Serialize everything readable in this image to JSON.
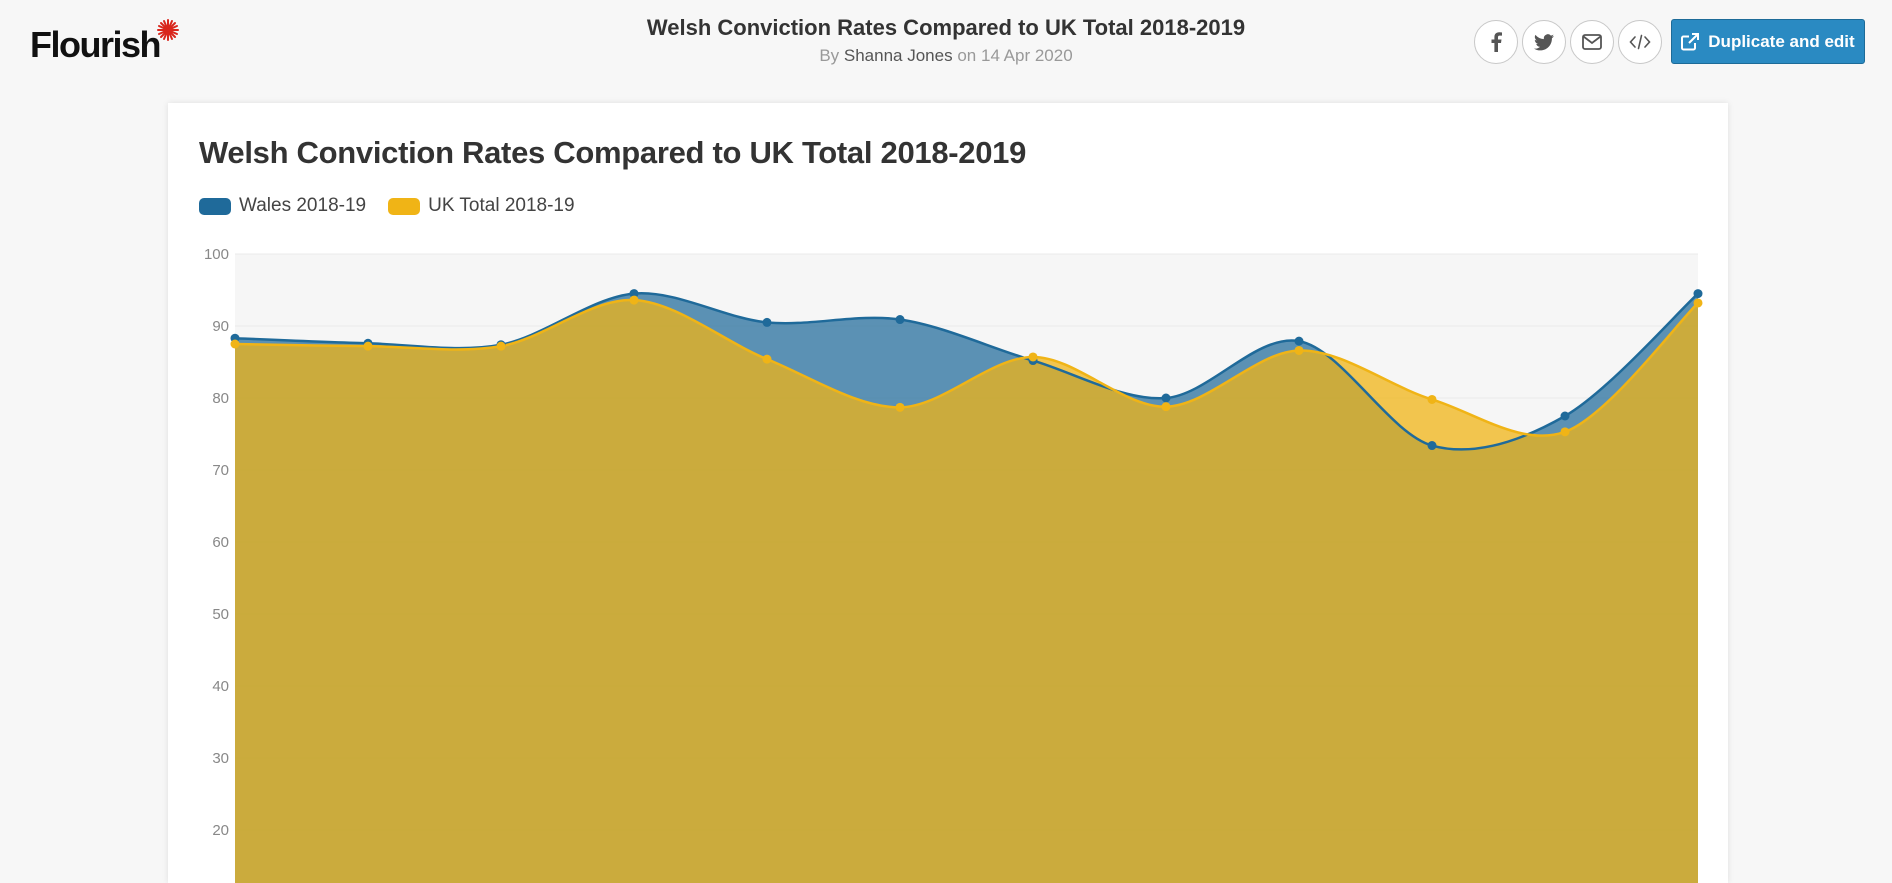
{
  "header": {
    "logo_text": "Flourish",
    "title": "Welsh Conviction Rates Compared to UK Total 2018-2019",
    "byline_prefix": "By",
    "author": "Shanna Jones",
    "byline_mid": "on",
    "date": "14 Apr 2020",
    "duplicate_label": "Duplicate and edit",
    "share_icons": [
      "facebook-icon",
      "twitter-icon",
      "email-icon",
      "embed-code-icon"
    ]
  },
  "colors": {
    "wales": "#1f6a9a",
    "uk": "#f0b416",
    "brand_accent": "#2a8ac2",
    "logo_star": "#d9261c"
  },
  "chart_data": {
    "type": "area",
    "title": "Welsh Conviction Rates Compared to UK Total 2018-2019",
    "xlabel": "",
    "ylabel": "",
    "ylim": [
      0,
      100
    ],
    "y_ticks_visible": [
      100,
      90,
      80,
      70,
      60,
      50,
      40,
      30,
      20
    ],
    "grid": true,
    "legend_position": "top-left",
    "x": [
      1,
      2,
      3,
      4,
      5,
      6,
      7,
      8,
      9,
      10,
      11,
      12
    ],
    "series": [
      {
        "name": "Wales 2018-19",
        "color": "#1f6a9a",
        "values": [
          88.3,
          87.6,
          87.4,
          94.5,
          90.5,
          90.9,
          85.2,
          80.0,
          87.9,
          73.4,
          77.5,
          94.5
        ]
      },
      {
        "name": "UK Total 2018-19",
        "color": "#f0b416",
        "values": [
          87.5,
          87.2,
          87.2,
          93.6,
          85.4,
          78.7,
          85.7,
          78.8,
          86.6,
          79.8,
          75.3,
          93.2
        ]
      }
    ]
  }
}
